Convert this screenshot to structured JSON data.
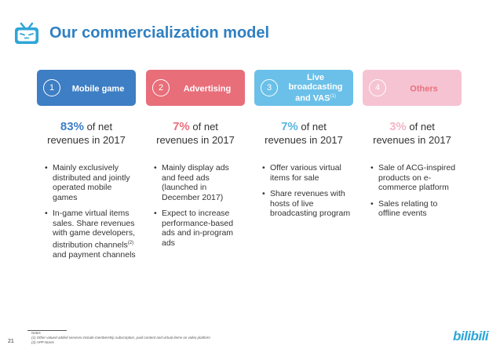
{
  "header": {
    "title": "Our commercialization model",
    "logo_icon": "tv-mascot-icon"
  },
  "columns": [
    {
      "number": "1",
      "label": "Mobile game",
      "label_sup": "",
      "color": "#3d7ec4",
      "pct_color": "#3d7ec4",
      "pct": "83%",
      "stat_line1": "of net",
      "stat_line2": "revenues in 2017",
      "bullets": [
        {
          "text": "Mainly exclusively distributed and jointly operated mobile games",
          "sup": "",
          "tail": ""
        },
        {
          "text": "In-game virtual items sales. Share revenues with game developers, distribution channels",
          "sup": "(2)",
          "tail": " and payment channels"
        }
      ]
    },
    {
      "number": "2",
      "label": "Advertising",
      "label_sup": "",
      "color": "#e86e7a",
      "pct_color": "#e8707c",
      "pct": "7%",
      "stat_line1": "of net",
      "stat_line2": "revenues in 2017",
      "bullets": [
        {
          "text": "Mainly display ads and feed ads (launched in December 2017)",
          "sup": "",
          "tail": ""
        },
        {
          "text": "Expect to increase performance-based ads and in-program ads",
          "sup": "",
          "tail": ""
        }
      ]
    },
    {
      "number": "3",
      "label": "Live broadcasting and VAS",
      "label_sup": "(1)",
      "color": "#6ac0e8",
      "pct_color": "#5ab4e0",
      "pct": "7%",
      "stat_line1": "of net",
      "stat_line2": "revenues in 2017",
      "bullets": [
        {
          "text": "Offer various virtual items for sale",
          "sup": "",
          "tail": ""
        },
        {
          "text": "Share revenues with hosts of live broadcasting program",
          "sup": "",
          "tail": ""
        }
      ]
    },
    {
      "number": "4",
      "label": "Others",
      "label_sup": "",
      "color": "#f6c3d2",
      "pct_color": "#f3b6c6",
      "pct": "3%",
      "stat_line1": "of net",
      "stat_line2": "revenues in 2017",
      "bullets": [
        {
          "text": "Sale of ACG-inspired products on e-commerce platform",
          "sup": "",
          "tail": ""
        },
        {
          "text": "Sales relating to offline events",
          "sup": "",
          "tail": ""
        }
      ]
    }
  ],
  "footer": {
    "notes_title": "Notes",
    "note1": "(1)   Other valued-added services include membership subscription, paid content and virtual items on video platform",
    "note2": "(2)   APP stores",
    "page_number": "21",
    "brand": "bilibili"
  }
}
